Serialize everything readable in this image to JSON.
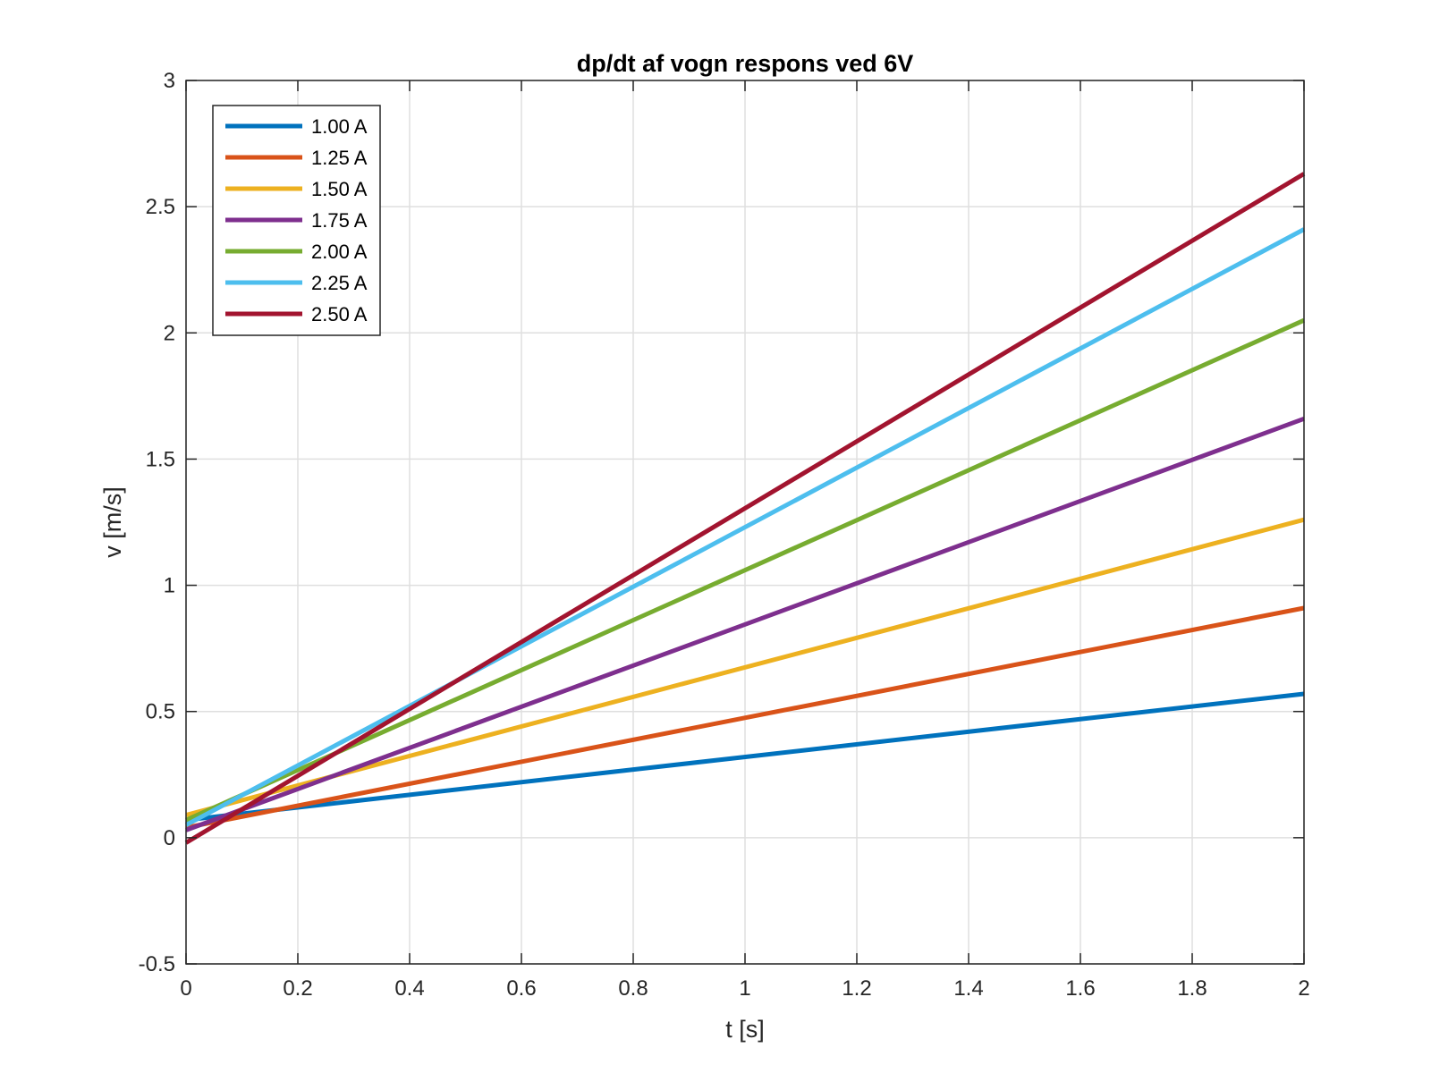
{
  "chart_data": {
    "type": "line",
    "title": "dp/dt af vogn respons ved 6V",
    "xlabel": "t [s]",
    "ylabel": "v [m/s]",
    "xlim": [
      0,
      2
    ],
    "ylim": [
      -0.5,
      3
    ],
    "xticks": [
      0,
      0.2,
      0.4,
      0.6,
      0.8,
      1,
      1.2,
      1.4,
      1.6,
      1.8,
      2
    ],
    "xtick_labels": [
      "0",
      "0.2",
      "0.4",
      "0.6",
      "0.8",
      "1",
      "1.2",
      "1.4",
      "1.6",
      "1.8",
      "2"
    ],
    "yticks": [
      -0.5,
      0,
      0.5,
      1,
      1.5,
      2,
      2.5,
      3
    ],
    "ytick_labels": [
      "-0.5",
      "0",
      "0.5",
      "1",
      "1.5",
      "2",
      "2.5",
      "3"
    ],
    "grid": true,
    "legend_position": "top-left",
    "series": [
      {
        "name": "1.00 A",
        "color": "#0072BD",
        "x": [
          0,
          2
        ],
        "y": [
          0.07,
          0.57
        ]
      },
      {
        "name": "1.25 A",
        "color": "#D95319",
        "x": [
          0,
          2
        ],
        "y": [
          0.04,
          0.91
        ]
      },
      {
        "name": "1.50 A",
        "color": "#EDB120",
        "x": [
          0,
          2
        ],
        "y": [
          0.09,
          1.26
        ]
      },
      {
        "name": "1.75 A",
        "color": "#7E2F8E",
        "x": [
          0,
          2
        ],
        "y": [
          0.03,
          1.66
        ]
      },
      {
        "name": "2.00 A",
        "color": "#77AC30",
        "x": [
          0,
          2
        ],
        "y": [
          0.07,
          2.05
        ]
      },
      {
        "name": "2.25 A",
        "color": "#4DBEEE",
        "x": [
          0,
          2
        ],
        "y": [
          0.05,
          2.41
        ]
      },
      {
        "name": "2.50 A",
        "color": "#A2142F",
        "x": [
          0,
          2
        ],
        "y": [
          -0.02,
          2.63
        ]
      }
    ]
  }
}
